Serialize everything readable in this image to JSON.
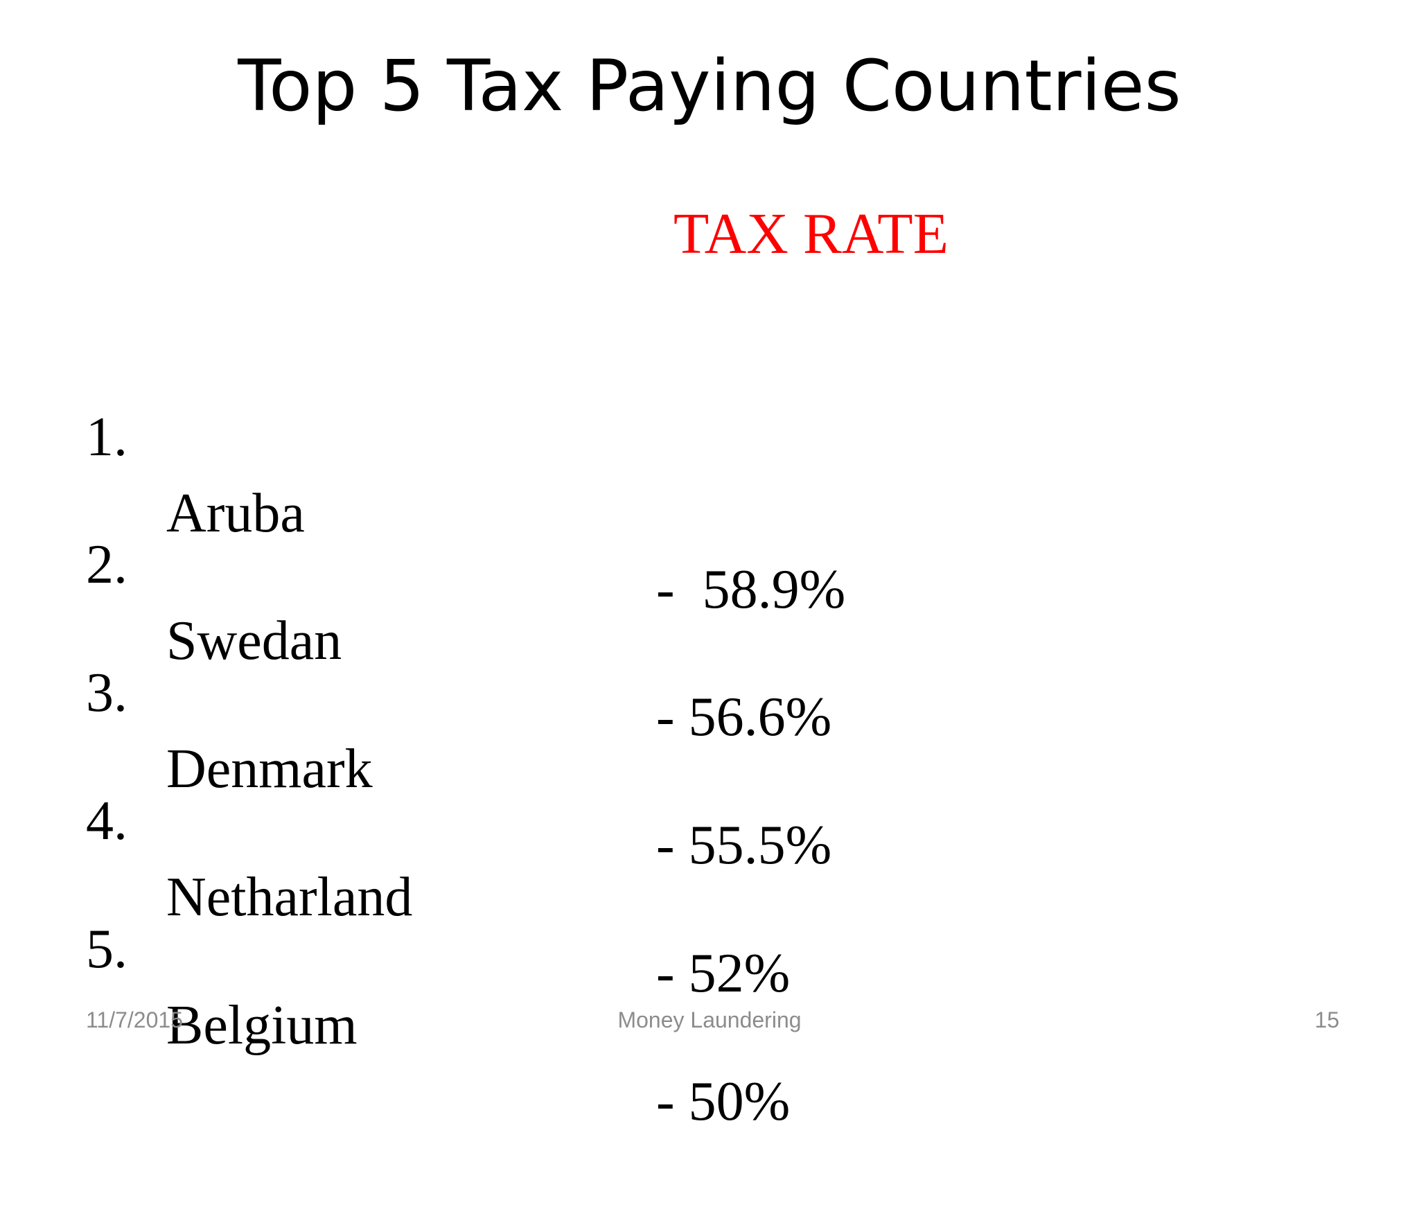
{
  "slide": {
    "title": "Top 5 Tax Paying Countries",
    "column_header": "TAX RATE",
    "column_header_color": "#ff0000",
    "rows": [
      {
        "number": "1.",
        "country": "Aruba",
        "rate": "-  58.9%"
      },
      {
        "number": "2.",
        "country": "Swedan",
        "rate": "- 56.6%"
      },
      {
        "number": "3.",
        "country": "Denmark",
        "rate": "- 55.5%"
      },
      {
        "number": "4.",
        "country": "Netharland",
        "rate": "- 52%"
      },
      {
        "number": "5.",
        "country": "Belgium",
        "rate": "- 50%"
      }
    ]
  },
  "footer": {
    "date": "11/7/2015",
    "topic": "Money Laundering",
    "page_number": "15"
  }
}
